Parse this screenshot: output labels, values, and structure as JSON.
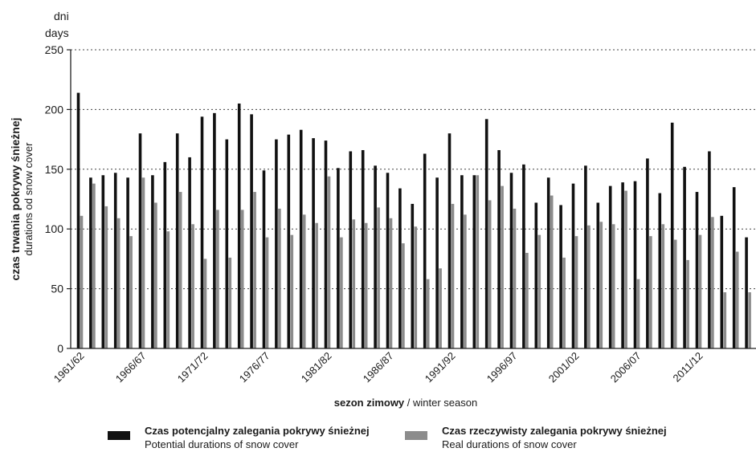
{
  "chart_data": {
    "type": "bar",
    "unit_pl": "dni",
    "unit_en": "days",
    "ylabel_pl": "czas trwania pokrywy śnieżnej",
    "ylabel_en": "durations od snow cover",
    "xlabel_pl": "sezon zimowy",
    "xlabel_sep": " / ",
    "xlabel_en": "winter season",
    "ylim": [
      0,
      250
    ],
    "yticks": [
      0,
      50,
      100,
      150,
      200,
      250
    ],
    "grid": "horizontal dotted",
    "categories": [
      "1961/62",
      "1962/63",
      "1963/64",
      "1964/65",
      "1965/66",
      "1966/67",
      "1967/68",
      "1968/69",
      "1969/70",
      "1970/71",
      "1971/72",
      "1972/73",
      "1973/74",
      "1974/75",
      "1975/76",
      "1976/77",
      "1977/78",
      "1978/79",
      "1979/80",
      "1980/81",
      "1981/82",
      "1982/83",
      "1983/84",
      "1984/85",
      "1985/86",
      "1986/87",
      "1987/88",
      "1988/89",
      "1989/90",
      "1990/91",
      "1991/92",
      "1992/93",
      "1993/94",
      "1994/95",
      "1995/96",
      "1996/97",
      "1997/98",
      "1998/99",
      "1999/00",
      "2000/01",
      "2001/02",
      "2002/03",
      "2003/04",
      "2004/05",
      "2005/06",
      "2006/07",
      "2007/08",
      "2008/09",
      "2009/10",
      "2010/11",
      "2011/12",
      "2012/13",
      "2013/14",
      "2014/15",
      "2015/16"
    ],
    "tick_labels": [
      "1961/62",
      "1966/67",
      "1971/72",
      "1976/77",
      "1981/82",
      "1986/87",
      "1991/92",
      "1996/97",
      "2001/02",
      "2006/07",
      "2011/12"
    ],
    "series": [
      {
        "name_pl": "Czas potencjalny zalegania pokrywy śnieżnej",
        "name_en": "Potential durations of snow cover",
        "color": "#111111",
        "values": [
          214,
          143,
          145,
          147,
          143,
          180,
          145,
          156,
          180,
          160,
          194,
          197,
          175,
          205,
          196,
          149,
          175,
          179,
          183,
          176,
          174,
          151,
          165,
          166,
          153,
          147,
          134,
          121,
          163,
          143,
          180,
          145,
          145,
          192,
          166,
          147,
          154,
          122,
          143,
          120,
          138,
          153,
          122,
          136,
          139,
          140,
          159,
          130,
          189,
          152,
          131,
          165,
          111,
          135,
          93
        ]
      },
      {
        "name_pl": "Czas rzeczywisty zalegania pokrywy śnieżnej",
        "name_en": "Real durations of snow cover",
        "color": "#8c8c8c",
        "values": [
          111,
          138,
          119,
          109,
          94,
          143,
          122,
          98,
          131,
          104,
          75,
          116,
          76,
          116,
          131,
          93,
          117,
          95,
          112,
          105,
          144,
          93,
          108,
          105,
          118,
          109,
          88,
          102,
          58,
          67,
          121,
          112,
          145,
          124,
          136,
          117,
          80,
          95,
          128,
          76,
          94,
          103,
          106,
          104,
          132,
          58,
          94,
          104,
          91,
          74,
          95,
          110,
          47,
          81,
          47
        ]
      }
    ]
  }
}
